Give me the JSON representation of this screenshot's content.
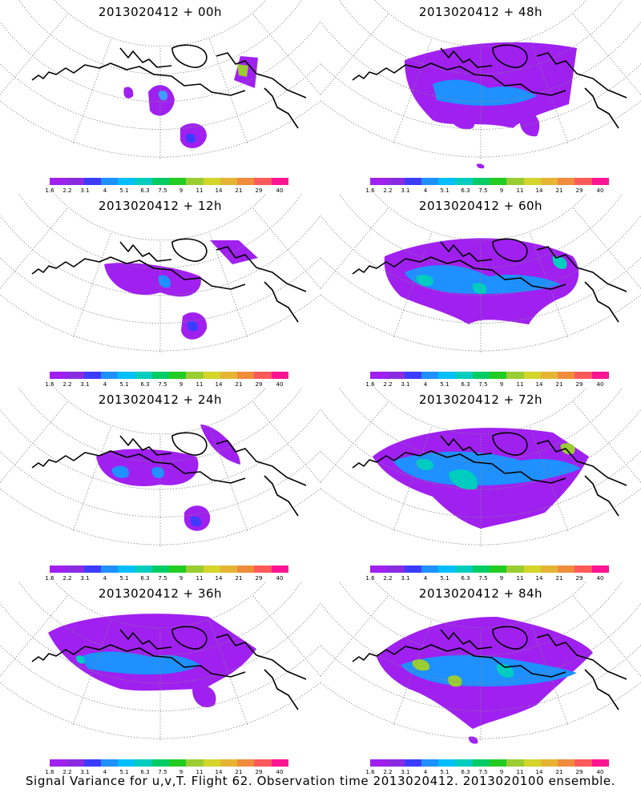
{
  "colorbar": {
    "colors": [
      "#a020f0",
      "#8a2be2",
      "#3c3cff",
      "#1e90ff",
      "#00bfff",
      "#00cdbf",
      "#00cc66",
      "#22cc22",
      "#9acd32",
      "#d4d42a",
      "#e6b432",
      "#f08c3c",
      "#ff5a5a",
      "#ff1493"
    ],
    "labels": [
      "1.6",
      "2.2",
      "3.1",
      "4",
      "5.1",
      "6.3",
      "7.5",
      "9",
      "11",
      "14",
      "21",
      "29",
      "40"
    ]
  },
  "panels": [
    {
      "title": "2013020412 + 00h",
      "coverage": "sparse"
    },
    {
      "title": "2013020412 + 48h",
      "coverage": "medium"
    },
    {
      "title": "2013020412 + 12h",
      "coverage": "sparse2"
    },
    {
      "title": "2013020412 + 60h",
      "coverage": "broad"
    },
    {
      "title": "2013020412 + 24h",
      "coverage": "sparse3"
    },
    {
      "title": "2013020412 + 72h",
      "coverage": "broad2"
    },
    {
      "title": "2013020412 + 36h",
      "coverage": "medium2"
    },
    {
      "title": "2013020412 + 84h",
      "coverage": "broad3"
    }
  ],
  "caption": "Signal Variance for u,v,T. Flight 62. Observation time 2013020412. 2013020100 ensemble."
}
